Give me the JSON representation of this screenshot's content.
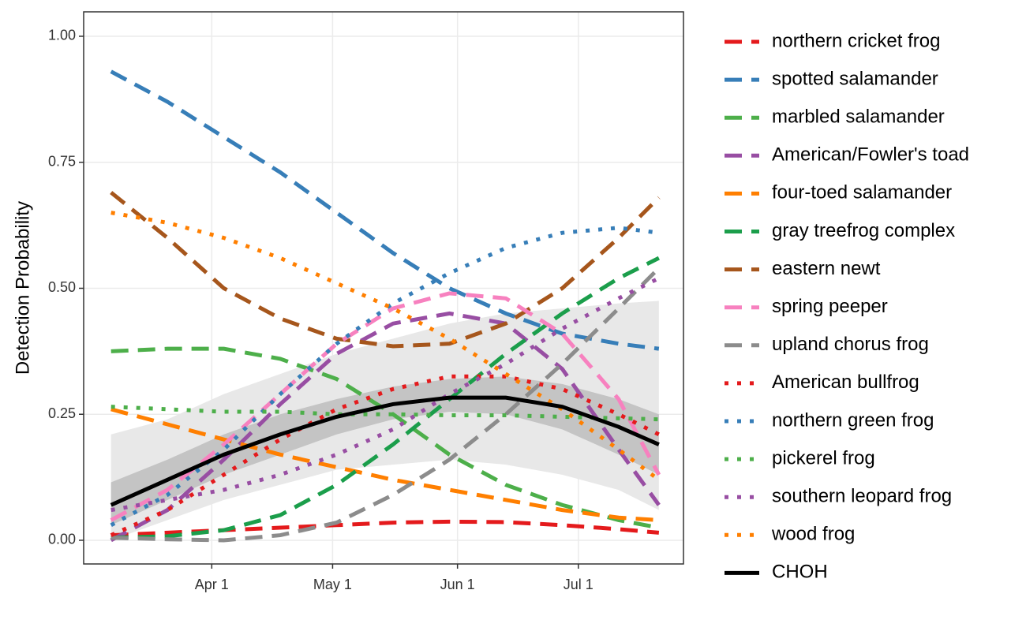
{
  "chart_data": {
    "type": "line",
    "y_label": "Detection Probability",
    "x": [
      66,
      80,
      94,
      108,
      122,
      136,
      150,
      164,
      178,
      192,
      202
    ],
    "xlim": [
      59.2,
      208.1
    ],
    "xticks": [
      {
        "value": 91,
        "label": "Apr 1"
      },
      {
        "value": 121,
        "label": "May 1"
      },
      {
        "value": 152,
        "label": "Jun 1"
      },
      {
        "value": 182,
        "label": "Jul 1"
      }
    ],
    "ylim": [
      -0.047,
      1.0485
    ],
    "yticks": [
      {
        "value": 0,
        "label": "0.00"
      },
      {
        "value": 0.25,
        "label": "0.25"
      },
      {
        "value": 0.5,
        "label": "0.50"
      },
      {
        "value": 0.75,
        "label": "0.75"
      },
      {
        "value": 1,
        "label": "1.00"
      }
    ],
    "grid": true,
    "legend": "right",
    "bands": [
      {
        "color": "#e8e8e8",
        "lower": [
          0,
          0.04,
          0.08,
          0.11,
          0.14,
          0.15,
          0.16,
          0.15,
          0.13,
          0.1,
          0.06
        ],
        "upper": [
          0.21,
          0.24,
          0.29,
          0.33,
          0.37,
          0.4,
          0.43,
          0.45,
          0.46,
          0.47,
          0.475
        ]
      },
      {
        "color": "#c4c4c4",
        "lower": [
          0.03,
          0.08,
          0.13,
          0.17,
          0.21,
          0.24,
          0.255,
          0.25,
          0.22,
          0.17,
          0.13
        ],
        "upper": [
          0.115,
          0.16,
          0.21,
          0.25,
          0.28,
          0.305,
          0.32,
          0.325,
          0.31,
          0.28,
          0.25
        ]
      }
    ],
    "series": [
      {
        "name": "northern cricket frog",
        "color": "#e41a1c",
        "dash": "dashed",
        "values": [
          0.01,
          0.015,
          0.02,
          0.025,
          0.03,
          0.035,
          0.037,
          0.036,
          0.03,
          0.022,
          0.015
        ]
      },
      {
        "name": "spotted salamander",
        "color": "#377eb8",
        "dash": "dashed",
        "values": [
          0.93,
          0.87,
          0.8,
          0.73,
          0.65,
          0.57,
          0.5,
          0.45,
          0.41,
          0.39,
          0.38
        ]
      },
      {
        "name": "marbled salamander",
        "color": "#4daf4a",
        "dash": "dashed",
        "values": [
          0.375,
          0.38,
          0.38,
          0.36,
          0.32,
          0.25,
          0.17,
          0.11,
          0.07,
          0.04,
          0.025
        ]
      },
      {
        "name": "American/Fowler's toad",
        "color": "#984ea3",
        "dash": "dashed",
        "values": [
          0.0,
          0.06,
          0.16,
          0.27,
          0.37,
          0.43,
          0.45,
          0.43,
          0.34,
          0.18,
          0.07
        ]
      },
      {
        "name": "four-toed salamander",
        "color": "#ff7f00",
        "dash": "dashed",
        "values": [
          0.26,
          0.23,
          0.2,
          0.17,
          0.145,
          0.12,
          0.1,
          0.08,
          0.06,
          0.045,
          0.04
        ]
      },
      {
        "name": "gray treefrog complex",
        "color": "#1b9e4b",
        "dash": "dashed",
        "values": [
          0.005,
          0.008,
          0.02,
          0.05,
          0.11,
          0.19,
          0.28,
          0.37,
          0.45,
          0.52,
          0.56
        ]
      },
      {
        "name": "eastern newt",
        "color": "#a6561c",
        "dash": "dashed",
        "values": [
          0.69,
          0.6,
          0.5,
          0.44,
          0.4,
          0.385,
          0.39,
          0.43,
          0.5,
          0.6,
          0.68
        ]
      },
      {
        "name": "spring peeper",
        "color": "#f781bf",
        "dash": "dashed",
        "values": [
          0.04,
          0.1,
          0.19,
          0.29,
          0.39,
          0.46,
          0.49,
          0.48,
          0.41,
          0.28,
          0.13
        ]
      },
      {
        "name": "upland chorus frog",
        "color": "#8c8c8c",
        "dash": "dashed",
        "values": [
          0.005,
          0.002,
          0.0,
          0.01,
          0.035,
          0.09,
          0.16,
          0.25,
          0.35,
          0.46,
          0.54
        ]
      },
      {
        "name": "American bullfrog",
        "color": "#e41a1c",
        "dash": "dotted",
        "values": [
          0.01,
          0.06,
          0.13,
          0.2,
          0.26,
          0.3,
          0.325,
          0.325,
          0.3,
          0.25,
          0.21
        ]
      },
      {
        "name": "northern green frog",
        "color": "#377eb8",
        "dash": "dotted",
        "values": [
          0.03,
          0.09,
          0.18,
          0.29,
          0.39,
          0.47,
          0.53,
          0.58,
          0.61,
          0.62,
          0.61
        ]
      },
      {
        "name": "pickerel frog",
        "color": "#4daf4a",
        "dash": "dotted",
        "values": [
          0.265,
          0.26,
          0.255,
          0.255,
          0.25,
          0.25,
          0.248,
          0.248,
          0.245,
          0.242,
          0.24
        ]
      },
      {
        "name": "southern leopard frog",
        "color": "#984ea3",
        "dash": "dotted",
        "values": [
          0.06,
          0.08,
          0.1,
          0.13,
          0.17,
          0.22,
          0.29,
          0.35,
          0.42,
          0.48,
          0.52
        ]
      },
      {
        "name": "wood frog",
        "color": "#ff7f00",
        "dash": "dotted",
        "values": [
          0.65,
          0.63,
          0.6,
          0.56,
          0.51,
          0.46,
          0.4,
          0.33,
          0.26,
          0.18,
          0.12
        ]
      },
      {
        "name": "CHOH",
        "color": "#000000",
        "dash": "solid",
        "values": [
          0.07,
          0.12,
          0.17,
          0.21,
          0.245,
          0.27,
          0.283,
          0.283,
          0.265,
          0.225,
          0.19
        ]
      }
    ]
  }
}
